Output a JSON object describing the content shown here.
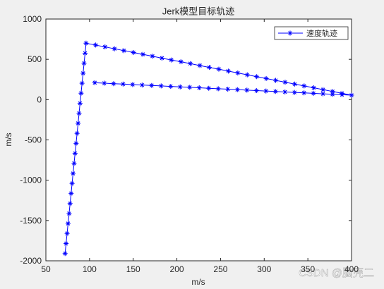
{
  "chart_data": {
    "type": "line",
    "title": "Jerk模型目标轨迹",
    "x_label": "m/s",
    "y_label": "m/s",
    "x": [
      72,
      73.1,
      74.3,
      75.4,
      76.6,
      77.7,
      78.9,
      80,
      81.1,
      82.3,
      83.4,
      84.6,
      85.7,
      86.9,
      88,
      89.1,
      90.3,
      91.4,
      92.6,
      93.7,
      94.9,
      96,
      106.9,
      117.7,
      128.6,
      139.4,
      150.3,
      161.1,
      172,
      182.9,
      193.7,
      204.6,
      215.4,
      226.3,
      237.1,
      248,
      258.9,
      269.7,
      280.6,
      291.4,
      302.3,
      313.1,
      324,
      334.9,
      345.7,
      356.6,
      367.4,
      378.3,
      389.1,
      400,
      389.1,
      378.2,
      367.3,
      356.4,
      345.6,
      334.7,
      323.8,
      312.9,
      302,
      291.1,
      280.2,
      269.3,
      258.3,
      247.4,
      236.5,
      225.6,
      214.7,
      203.8,
      192.9,
      182,
      171.1,
      160.2,
      149.3,
      138.4,
      127.5,
      116.9,
      106
    ],
    "series": [
      {
        "name": "速度轨迹",
        "color": "#0000ff",
        "marker": "*",
        "values": [
          -1910,
          -1786,
          -1661,
          -1537,
          -1413,
          -1289,
          -1164,
          -1040,
          -916,
          -791,
          -667,
          -543,
          -419,
          -294,
          -170,
          -46,
          79,
          203,
          327,
          451,
          576,
          700,
          677,
          654,
          631,
          608,
          585,
          562,
          539,
          515,
          492,
          470,
          447,
          423,
          400,
          378,
          354,
          331,
          308,
          285,
          262,
          239,
          216,
          193,
          170,
          147,
          124,
          101,
          78,
          55,
          61,
          66,
          72,
          78,
          84,
          89,
          95,
          101,
          107,
          112,
          118,
          124,
          130,
          135,
          141,
          147,
          153,
          158,
          164,
          170,
          176,
          181,
          187,
          193,
          198,
          204,
          210
        ]
      }
    ],
    "xlim": [
      50,
      400
    ],
    "xticks": [
      50,
      100,
      150,
      200,
      250,
      300,
      350,
      400
    ],
    "ylim": [
      -2000,
      1000
    ],
    "yticks": [
      -2000,
      -1500,
      -1000,
      -500,
      0,
      500,
      1000
    ],
    "grid": false,
    "legend": "upper right",
    "watermark": "CSDN @脑壳二"
  }
}
